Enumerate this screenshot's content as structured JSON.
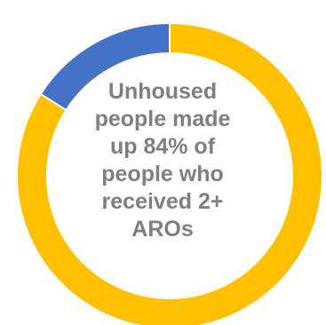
{
  "chart_data": {
    "type": "pie",
    "variant": "donut",
    "slices": [
      {
        "value": 84,
        "color": "#ffc000"
      },
      {
        "value": 16,
        "color": "#4472c4"
      }
    ],
    "center_label": [
      "Unhoused",
      "people made",
      "up 84% of",
      "people who",
      "received 2+",
      "AROs"
    ],
    "center_label_color": "#7f7f7f",
    "start_angle_deg": 0,
    "direction": "clockwise",
    "legend": "none"
  }
}
